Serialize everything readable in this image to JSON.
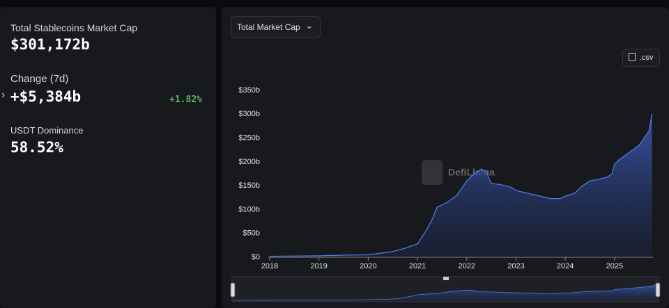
{
  "stats": {
    "market_cap_label": "Total Stablecoins Market Cap",
    "market_cap_value": "$301,172b",
    "change_label": "Change (7d)",
    "change_value": "+$5,384b",
    "change_percent": "+1.82%",
    "dominance_label": "USDT Dominance",
    "dominance_value": "58.52%"
  },
  "controls": {
    "dropdown": "Total Market Cap",
    "csv_button": ".csv"
  },
  "watermark": "DefiLlama",
  "chart_data": {
    "type": "area",
    "color": "#4f7be0",
    "grid": false,
    "x": [
      2018.0,
      2018.5,
      2019.0,
      2019.5,
      2020.0,
      2020.3,
      2020.5,
      2020.75,
      2021.0,
      2021.2,
      2021.3,
      2021.4,
      2021.6,
      2021.8,
      2021.9,
      2022.0,
      2022.15,
      2022.3,
      2022.4,
      2022.45,
      2022.5,
      2022.7,
      2022.9,
      2023.0,
      2023.2,
      2023.5,
      2023.7,
      2023.9,
      2024.0,
      2024.2,
      2024.35,
      2024.5,
      2024.7,
      2024.85,
      2024.95,
      2025.0,
      2025.1,
      2025.3,
      2025.5,
      2025.6,
      2025.7,
      2025.76
    ],
    "values": [
      2,
      2.5,
      3,
      4.5,
      5,
      9,
      12,
      19,
      28,
      60,
      80,
      105,
      115,
      130,
      145,
      160,
      175,
      185,
      180,
      165,
      155,
      152,
      147,
      140,
      135,
      128,
      123,
      123,
      128,
      135,
      150,
      160,
      164,
      168,
      175,
      195,
      205,
      220,
      235,
      250,
      265,
      301
    ],
    "xlim": [
      2018,
      2025.78
    ],
    "ylim": [
      0,
      350
    ],
    "xticks": [
      2018,
      2019,
      2020,
      2021,
      2022,
      2023,
      2024,
      2025
    ],
    "yticks": [
      {
        "value": 0,
        "label": "$0"
      },
      {
        "value": 50,
        "label": "$50b"
      },
      {
        "value": 100,
        "label": "$100b"
      },
      {
        "value": 150,
        "label": "$150b"
      },
      {
        "value": 200,
        "label": "$200b"
      },
      {
        "value": 250,
        "label": "$250b"
      },
      {
        "value": 300,
        "label": "$300b"
      },
      {
        "value": 350,
        "label": "$350b"
      }
    ]
  }
}
